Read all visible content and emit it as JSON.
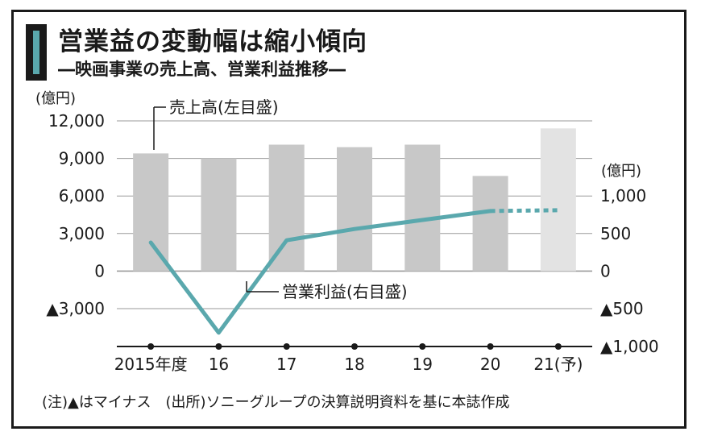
{
  "title": "営業益の変動幅は縮小傾向",
  "subtitle": "―映画事業の売上高、営業利益推移―",
  "note": "(注)▲はマイナス　(出所)ソニーグループの決算説明資料を基に本誌作成",
  "colors": {
    "bar": "#c8c8c8",
    "bar_forecast": "#e3e3e3",
    "line": "#5aa8ad",
    "grid": "#9a9a9a",
    "accent": "#5aa8ad"
  },
  "chart_data": {
    "type": "bar+line",
    "categories": [
      "2015年度",
      "16",
      "17",
      "18",
      "19",
      "20",
      "21(予)"
    ],
    "left_axis": {
      "unit": "(億円)",
      "range": [
        -3000,
        12000
      ],
      "ticks": [
        12000,
        9000,
        6000,
        3000,
        0,
        -3000
      ],
      "tick_labels": [
        "12,000",
        "9,000",
        "6,000",
        "3,000",
        "0",
        "▲3,000"
      ]
    },
    "right_axis": {
      "unit": "(億円)",
      "range": [
        -1000,
        1000
      ],
      "ticks": [
        1000,
        500,
        0,
        -500,
        -1000
      ],
      "tick_labels": [
        "1,000",
        "500",
        "0",
        "▲500",
        "▲1,000"
      ]
    },
    "series": [
      {
        "name": "売上高(左目盛)",
        "type": "bar",
        "axis": "left",
        "values": [
          9400,
          9000,
          10100,
          9900,
          10100,
          7600,
          11400
        ],
        "forecast_index": 6
      },
      {
        "name": "営業利益(右目盛)",
        "type": "line",
        "axis": "right",
        "values": [
          380,
          -820,
          410,
          560,
          680,
          800,
          810
        ],
        "forecast_index": 6
      }
    ],
    "grid": true
  }
}
